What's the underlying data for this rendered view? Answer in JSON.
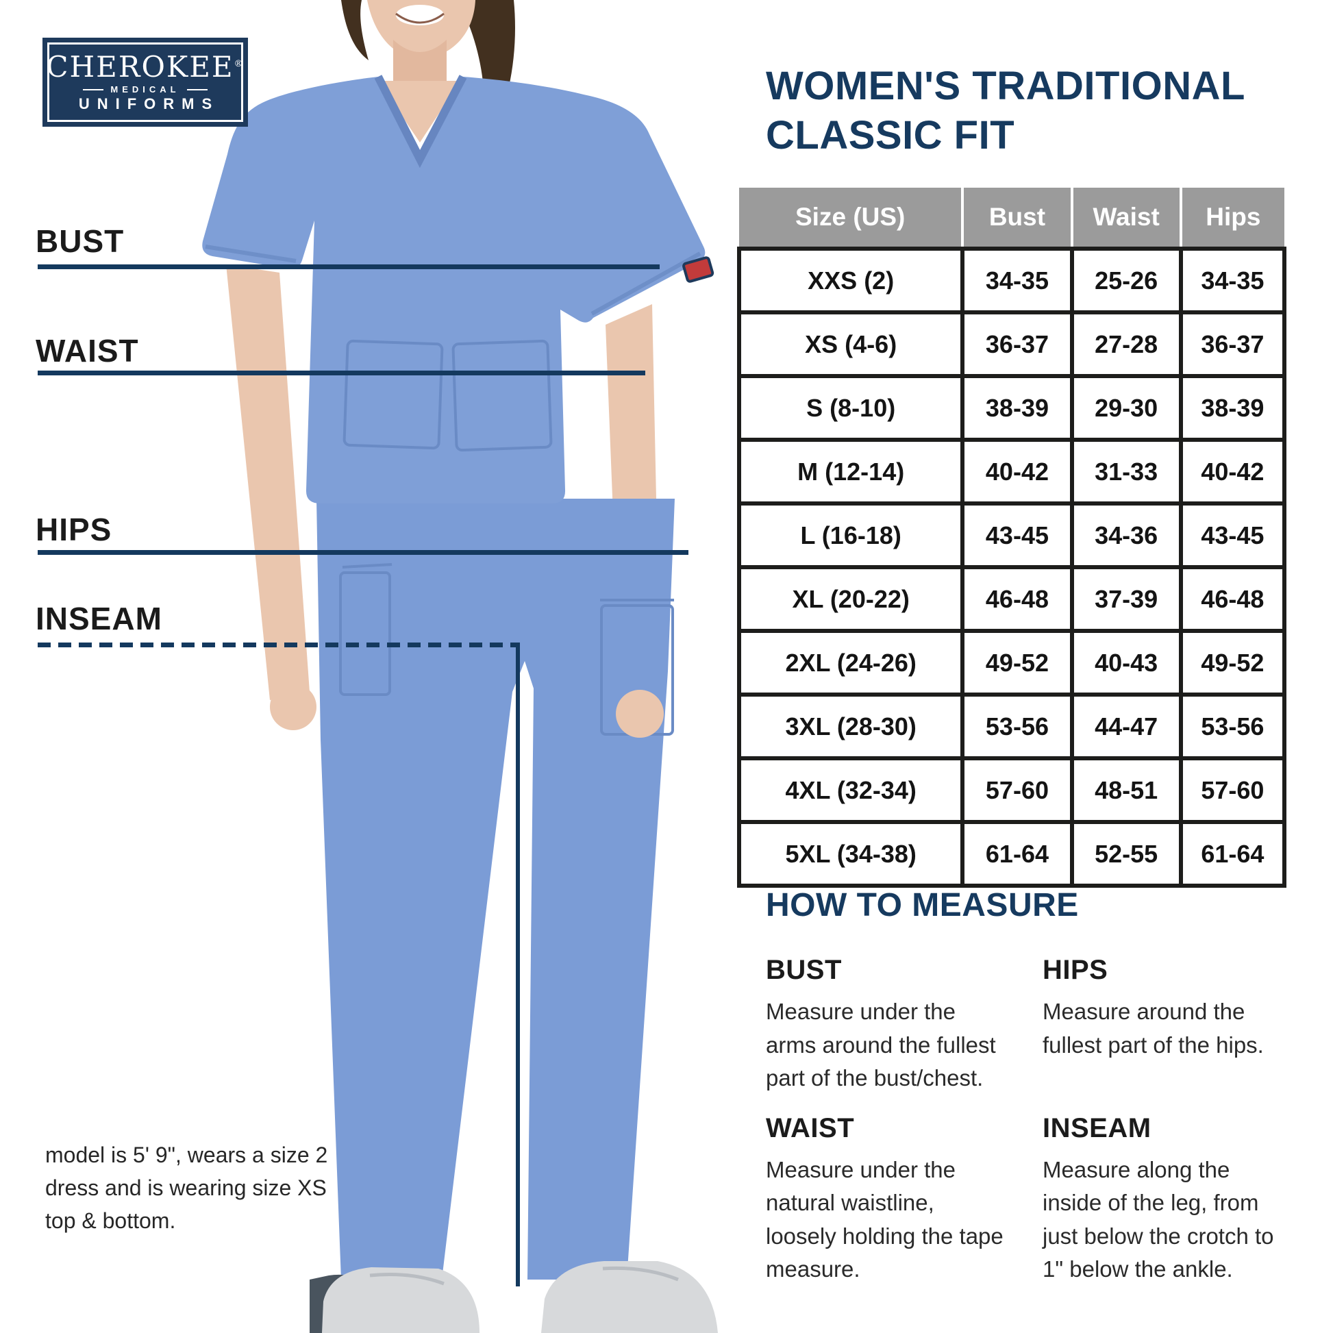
{
  "logo": {
    "brand": "CHEROKEE",
    "reg": "®",
    "medical": "MEDICAL",
    "uniforms": "UNIFORMS"
  },
  "title": {
    "line1": "WOMEN'S TRADITIONAL",
    "line2": "CLASSIC FIT"
  },
  "measurement_labels": {
    "bust": "BUST",
    "waist": "WAIST",
    "hips": "HIPS",
    "inseam": "INSEAM"
  },
  "size_table": {
    "headers": [
      "Size (US)",
      "Bust",
      "Waist",
      "Hips"
    ],
    "rows": [
      [
        "XXS (2)",
        "34-35",
        "25-26",
        "34-35"
      ],
      [
        "XS (4-6)",
        "36-37",
        "27-28",
        "36-37"
      ],
      [
        "S (8-10)",
        "38-39",
        "29-30",
        "38-39"
      ],
      [
        "M (12-14)",
        "40-42",
        "31-33",
        "40-42"
      ],
      [
        "L (16-18)",
        "43-45",
        "34-36",
        "43-45"
      ],
      [
        "XL (20-22)",
        "46-48",
        "37-39",
        "46-48"
      ],
      [
        "2XL (24-26)",
        "49-52",
        "40-43",
        "49-52"
      ],
      [
        "3XL (28-30)",
        "53-56",
        "44-47",
        "53-56"
      ],
      [
        "4XL (32-34)",
        "57-60",
        "48-51",
        "57-60"
      ],
      [
        "5XL (34-38)",
        "61-64",
        "52-55",
        "61-64"
      ]
    ]
  },
  "how_to_measure": {
    "heading": "HOW TO MEASURE",
    "sections": [
      {
        "label": "BUST",
        "text": "Measure under the arms around the fullest part of the bust/chest."
      },
      {
        "label": "HIPS",
        "text": "Measure around the fullest part of the hips."
      },
      {
        "label": "WAIST",
        "text": "Measure under the natural waistline, loosely holding the tape measure."
      },
      {
        "label": "INSEAM",
        "text": "Measure along the inside of the leg, from just below the crotch to 1\" below the ankle."
      }
    ]
  },
  "footnote": {
    "lines": [
      "model is 5' 9\", wears a size 2",
      "dress and is wearing size XS",
      "top & bottom."
    ]
  },
  "colors": {
    "navy": "#163a5f",
    "logo_navy": "#1e3a5c",
    "header_gray": "#9b9b9b",
    "table_border_black": "#1d1d1b",
    "scrub_blue": "#7f9fd7",
    "skin": "#eac6ae",
    "shoe_gray": "#d7d9db"
  }
}
